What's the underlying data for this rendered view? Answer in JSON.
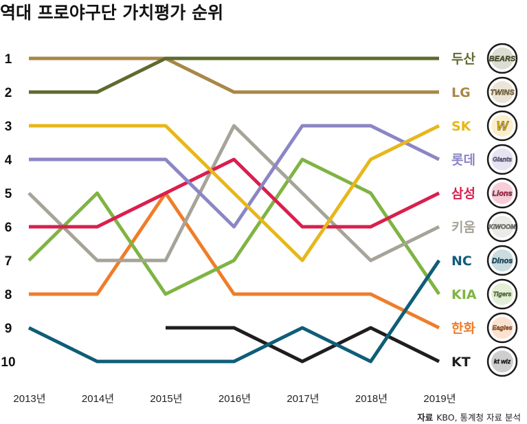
{
  "chart_data": {
    "type": "line",
    "title": "역대 프로야구단 가치평가 순위",
    "xlabel": "",
    "ylabel": "",
    "x": [
      "2013년",
      "2014년",
      "2015년",
      "2016년",
      "2017년",
      "2018년",
      "2019년"
    ],
    "rank_ticks": [
      "1",
      "2",
      "3",
      "4",
      "5",
      "6",
      "7",
      "8",
      "9",
      "10"
    ],
    "ylim": [
      1,
      10
    ],
    "y_inverted": true,
    "grid": false,
    "series": [
      {
        "name": "두산",
        "color": "#5e6b2e",
        "logo": "doosan-bears-logo",
        "logo_text": "BEARS",
        "values": [
          2,
          2,
          1,
          1,
          1,
          1,
          1
        ]
      },
      {
        "name": "LG",
        "color": "#a88748",
        "logo": "lg-twins-logo",
        "logo_text": "TWINS",
        "values": [
          1,
          1,
          1,
          2,
          2,
          2,
          2
        ]
      },
      {
        "name": "SK",
        "color": "#e7b71b",
        "logo": "sk-wyverns-logo",
        "logo_text": "W",
        "values": [
          3,
          3,
          3,
          5,
          7,
          4,
          3
        ]
      },
      {
        "name": "롯데",
        "color": "#8b86c4",
        "logo": "lotte-giants-logo",
        "logo_text": "Giants",
        "values": [
          4,
          4,
          4,
          6,
          3,
          3,
          4
        ]
      },
      {
        "name": "삼성",
        "color": "#d91f4f",
        "logo": "samsung-lions-logo",
        "logo_text": "Lions",
        "values": [
          6,
          6,
          5,
          4,
          6,
          6,
          5
        ]
      },
      {
        "name": "키움",
        "color": "#a6a398",
        "logo": "kiwoom-heroes-logo",
        "logo_text": "KIWOOM",
        "values": [
          5,
          7,
          7,
          3,
          5,
          7,
          6
        ]
      },
      {
        "name": "NC",
        "color": "#0f5d78",
        "logo": "nc-dinos-logo",
        "logo_text": "Dinos",
        "values": [
          9,
          10,
          10,
          10,
          9,
          10,
          7
        ]
      },
      {
        "name": "KIA",
        "color": "#7fb443",
        "logo": "kia-tigers-logo",
        "logo_text": "Tigers",
        "values": [
          7,
          5,
          8,
          7,
          4,
          5,
          8
        ]
      },
      {
        "name": "한화",
        "color": "#ef7d2a",
        "logo": "hanwha-eagles-logo",
        "logo_text": "Eagles",
        "values": [
          8,
          8,
          5,
          8,
          8,
          8,
          9
        ]
      },
      {
        "name": "KT",
        "color": "#1e1e1e",
        "logo": "kt-wiz-logo",
        "logo_text": "kt wiz",
        "values": [
          null,
          null,
          9,
          9,
          10,
          9,
          10
        ]
      }
    ]
  },
  "source_label": "자료",
  "source_text": "KBO, 통계청 자료 분석"
}
